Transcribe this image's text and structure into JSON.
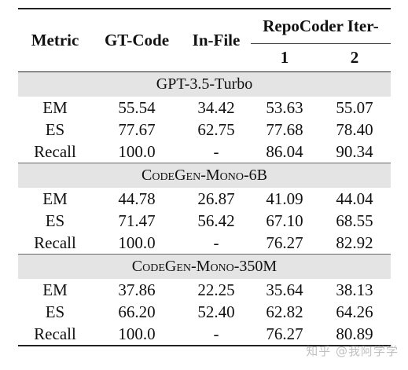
{
  "table": {
    "headers": {
      "metric": "Metric",
      "gt_code": "GT-Code",
      "in_file": "In-File",
      "repocoder": "RepoCoder Iter-",
      "iter1": "1",
      "iter2": "2"
    },
    "sections": [
      {
        "title": "GPT-3.5-Turbo",
        "rows": [
          {
            "metric": "EM",
            "gt_code": "55.54",
            "in_file": "34.42",
            "iter1": "53.63",
            "iter2": "55.07"
          },
          {
            "metric": "ES",
            "gt_code": "77.67",
            "in_file": "62.75",
            "iter1": "77.68",
            "iter2": "78.40"
          },
          {
            "metric": "Recall",
            "gt_code": "100.0",
            "in_file": "-",
            "iter1": "86.04",
            "iter2": "90.34"
          }
        ]
      },
      {
        "title": "CodeGen-Mono-6B",
        "rows": [
          {
            "metric": "EM",
            "gt_code": "44.78",
            "in_file": "26.87",
            "iter1": "41.09",
            "iter2": "44.04"
          },
          {
            "metric": "ES",
            "gt_code": "71.47",
            "in_file": "56.42",
            "iter1": "67.10",
            "iter2": "68.55"
          },
          {
            "metric": "Recall",
            "gt_code": "100.0",
            "in_file": "-",
            "iter1": "76.27",
            "iter2": "82.92"
          }
        ]
      },
      {
        "title": "CodeGen-Mono-350M",
        "rows": [
          {
            "metric": "EM",
            "gt_code": "37.86",
            "in_file": "22.25",
            "iter1": "35.64",
            "iter2": "38.13"
          },
          {
            "metric": "ES",
            "gt_code": "66.20",
            "in_file": "52.40",
            "iter1": "62.82",
            "iter2": "64.26"
          },
          {
            "metric": "Recall",
            "gt_code": "100.0",
            "in_file": "-",
            "iter1": "76.27",
            "iter2": "80.89"
          }
        ]
      }
    ]
  },
  "watermark": "知乎 @我阿学学"
}
